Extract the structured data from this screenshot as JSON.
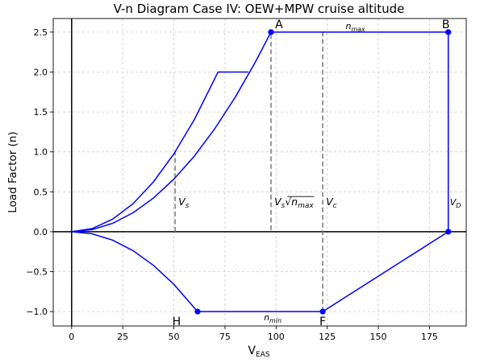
{
  "chart_data": {
    "type": "line",
    "title": "V-n Diagram Case IV: OEW+MPW cruise altitude",
    "xlabel": "V",
    "xlabel_sub": "EAS",
    "ylabel": "Load Factor (n)",
    "xlim": [
      -9,
      193
    ],
    "ylim": [
      -1.18,
      2.67
    ],
    "xticks": [
      0,
      25,
      50,
      75,
      100,
      125,
      150,
      175
    ],
    "yticks": [
      -1.0,
      -0.5,
      0.0,
      0.5,
      1.0,
      1.5,
      2.0,
      2.5
    ],
    "ytick_labels": [
      "−1.0",
      "−0.5",
      "0.0",
      "0.5",
      "1.0",
      "1.5",
      "2.0",
      "2.5"
    ],
    "grid": true,
    "line_color": "#0000ff",
    "ref_line_color": "#777777",
    "series": [
      {
        "x": [
          0,
          10,
          20,
          30,
          40,
          50,
          60,
          71.6,
          86.4
        ],
        "y": [
          0,
          0.04,
          0.156,
          0.351,
          0.624,
          0.975,
          1.404,
          2.0,
          2.0
        ]
      },
      {
        "x": [
          0,
          10,
          20,
          30,
          40,
          50,
          60,
          70,
          80,
          90,
          97.5,
          122.8,
          184.2
        ],
        "y": [
          0,
          0.026,
          0.105,
          0.237,
          0.421,
          0.658,
          0.947,
          1.289,
          1.684,
          2.131,
          2.5,
          2.5,
          2.5
        ]
      },
      {
        "x": [
          184.2,
          184.2
        ],
        "y": [
          2.5,
          0
        ]
      },
      {
        "x": [
          0,
          10,
          20,
          30,
          40,
          50,
          61.6,
          122.8,
          184.2
        ],
        "y": [
          0,
          -0.026,
          -0.105,
          -0.237,
          -0.421,
          -0.658,
          -1.0,
          -1.0,
          0
        ]
      }
    ],
    "markers": [
      {
        "x": 97.5,
        "y": 2.5
      },
      {
        "x": 184.2,
        "y": 2.5
      },
      {
        "x": 184.2,
        "y": 0
      },
      {
        "x": 61.6,
        "y": -1.0
      },
      {
        "x": 122.8,
        "y": -1.0
      }
    ],
    "point_labels": [
      {
        "text": "A",
        "x": 97.5,
        "y": 2.5
      },
      {
        "text": "B",
        "x": 184.2,
        "y": 2.5
      },
      {
        "text": "H",
        "x": 61.6,
        "y": -1.0
      },
      {
        "text": "F",
        "x": 122.8,
        "y": -1.0
      }
    ],
    "vlines": [
      {
        "x": 50.6,
        "y0": 0,
        "y1": 1.0,
        "label": "V_s"
      },
      {
        "x": 97.5,
        "y0": 0.02,
        "y1": 2.5,
        "label": "V_s√n_max"
      },
      {
        "x": 122.8,
        "y0": -1.0,
        "y1": 2.5,
        "label": "V_c"
      }
    ],
    "annotations": [
      {
        "text": "n_max",
        "x": 134,
        "y": 2.5
      },
      {
        "text": "n_min",
        "x": 94,
        "y": -1.0
      },
      {
        "text": "V_D",
        "x": 187,
        "y": 0.33
      }
    ]
  }
}
